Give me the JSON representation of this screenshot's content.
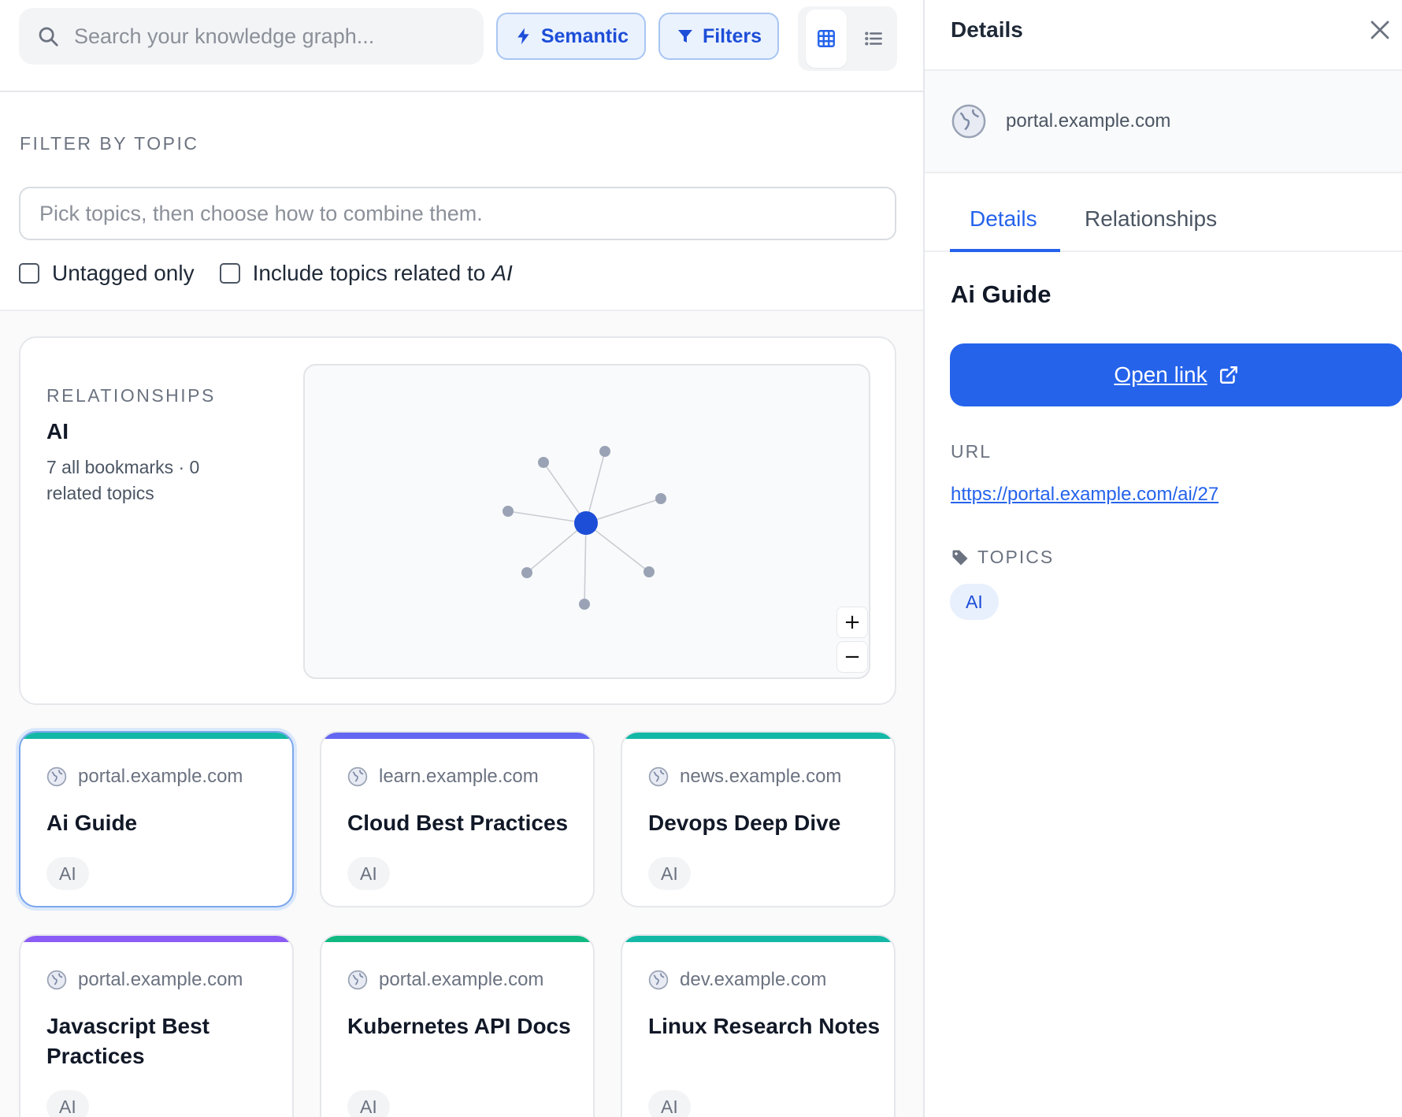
{
  "search": {
    "placeholder": "Search your knowledge graph..."
  },
  "toolbar": {
    "semantic_label": "Semantic",
    "filters_label": "Filters"
  },
  "filter": {
    "heading": "FILTER BY TOPIC",
    "topic_placeholder": "Pick topics, then choose how to combine them.",
    "untagged_label": "Untagged only",
    "include_related_label": "Include topics related to",
    "include_related_topic": "AI"
  },
  "relationships": {
    "heading": "RELATIONSHIPS",
    "topic": "AI",
    "meta": "7 all bookmarks · 0 related topics",
    "zoom_in": "+",
    "zoom_out": "−"
  },
  "cards": [
    {
      "domain": "portal.example.com",
      "title": "Ai Guide",
      "tag": "AI",
      "accent": "#14b8a6",
      "selected": true
    },
    {
      "domain": "learn.example.com",
      "title": "Cloud Best Practices",
      "tag": "AI",
      "accent": "#6366f1",
      "selected": false
    },
    {
      "domain": "news.example.com",
      "title": "Devops Deep Dive",
      "tag": "AI",
      "accent": "#14b8a6",
      "selected": false
    },
    {
      "domain": "portal.example.com",
      "title": "Javascript Best Practices",
      "tag": "AI",
      "accent": "#8b5cf6",
      "selected": false
    },
    {
      "domain": "portal.example.com",
      "title": "Kubernetes API Docs",
      "tag": "AI",
      "accent": "#10b981",
      "selected": false
    },
    {
      "domain": "dev.example.com",
      "title": "Linux Research Notes",
      "tag": "AI",
      "accent": "#14b8a6",
      "selected": false
    }
  ],
  "panel": {
    "title": "Details",
    "site_domain": "portal.example.com",
    "tabs": [
      {
        "label": "Details",
        "active": true
      },
      {
        "label": "Relationships",
        "active": false
      }
    ],
    "bookmark_title": "Ai Guide",
    "open_link_label": "Open link",
    "url_heading": "URL",
    "url": "https://portal.example.com/ai/27",
    "topics_heading": "TOPICS",
    "topics": [
      "AI"
    ]
  },
  "colors": {
    "accent": "#2563eb",
    "graph_center": "#1d4ed8",
    "graph_node": "#9aa3b5"
  },
  "icons": {
    "search": "search-icon",
    "semantic": "lightning-icon",
    "filters": "funnel-icon",
    "grid_view": "grid-icon",
    "list_view": "list-icon",
    "close": "close-icon",
    "site": "globe-icon",
    "external": "external-link-icon",
    "topics": "tag-icon"
  }
}
